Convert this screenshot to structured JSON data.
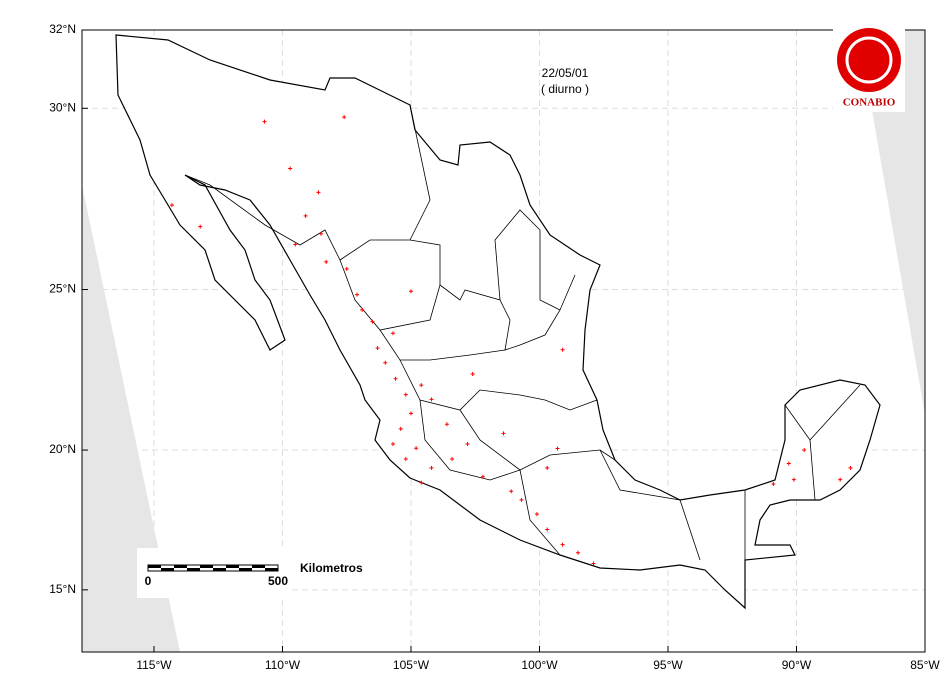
{
  "chart_data": {
    "type": "scatter",
    "date": "22/05/01",
    "subtitle": "( diurno )",
    "logo": "CONABIO",
    "scale": {
      "start": "0",
      "end": "500",
      "unit": "Kilometros"
    },
    "xlim": [
      -117.8,
      -85
    ],
    "ylim": [
      12.5,
      32
    ],
    "xticks": [
      {
        "value": -115,
        "label": "115°W"
      },
      {
        "value": -110,
        "label": "110°W"
      },
      {
        "value": -105,
        "label": "105°W"
      },
      {
        "value": -100,
        "label": "100°W"
      },
      {
        "value": -95,
        "label": "95°W"
      },
      {
        "value": -90,
        "label": "90°W"
      },
      {
        "value": -85,
        "label": "85°W"
      }
    ],
    "yticks": [
      {
        "value": 15,
        "label": "15°N"
      },
      {
        "value": 20,
        "label": "20°N"
      },
      {
        "value": 25,
        "label": "25°N"
      },
      {
        "value": 30,
        "label": "30°N"
      },
      {
        "value": 32,
        "label": "32°N"
      }
    ],
    "grid": true,
    "color": "#ff0000",
    "x": [
      -110.7,
      -107.6,
      -109.7,
      -108.6,
      -109.1,
      -114.3,
      -113.2,
      -109.5,
      -108.5,
      -108.3,
      -107.5,
      -107.1,
      -106.9,
      -106.5,
      -105.0,
      -106.3,
      -105.7,
      -106.0,
      -105.6,
      -105.2,
      -104.6,
      -104.2,
      -105.0,
      -105.4,
      -105.7,
      -105.2,
      -104.8,
      -104.2,
      -104.6,
      -103.4,
      -102.8,
      -102.2,
      -101.1,
      -100.7,
      -100.1,
      -99.7,
      -99.1,
      -98.5,
      -97.9,
      -101.4,
      -99.1,
      -102.6,
      -103.6,
      -99.3,
      -99.7,
      -90.3,
      -90.1,
      -90.9,
      -89.7,
      -88.3,
      -87.9
    ],
    "values": [
      29.65,
      29.77,
      28.4,
      27.75,
      27.1,
      27.4,
      26.8,
      26.3,
      26.6,
      25.8,
      25.6,
      24.85,
      24.4,
      24.05,
      24.95,
      23.25,
      23.7,
      22.8,
      22.3,
      21.8,
      22.1,
      21.65,
      21.2,
      20.7,
      20.2,
      19.7,
      20.06,
      19.4,
      18.9,
      19.7,
      20.2,
      19.1,
      18.6,
      18.3,
      17.8,
      17.25,
      16.7,
      16.4,
      16.0,
      20.55,
      23.2,
      22.45,
      20.85,
      20.05,
      19.4,
      19.55,
      19.0,
      18.85,
      20.0,
      19.0,
      19.4
    ]
  }
}
